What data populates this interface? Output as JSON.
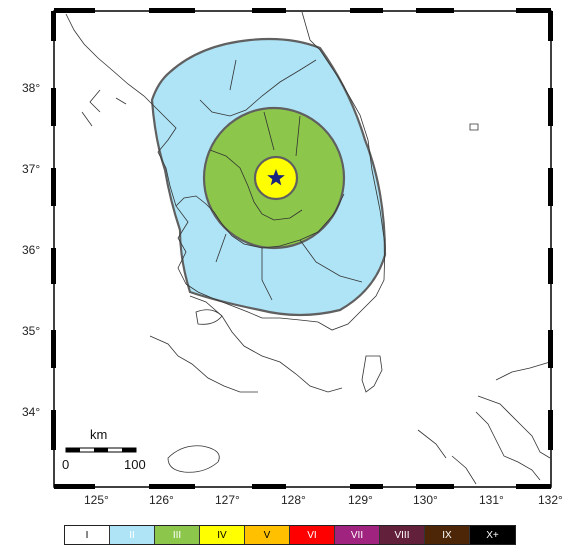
{
  "map": {
    "y_axis_labels": [
      "38°",
      "37°",
      "36°",
      "35°",
      "34°"
    ],
    "x_axis_labels": [
      "125°",
      "126°",
      "127°",
      "128°",
      "129°",
      "130°",
      "131°",
      "132°"
    ],
    "scale_bar": {
      "unit": "km",
      "start": "0",
      "end": "100"
    },
    "epicenter_marker": "star-icon",
    "intensity_zones": [
      {
        "level": "II",
        "color": "#aee4f6"
      },
      {
        "level": "III",
        "color": "#8cc64a"
      },
      {
        "level": "IV",
        "color": "#ffff00"
      }
    ]
  },
  "legend": {
    "items": [
      {
        "label": "I",
        "color": "#ffffff",
        "text_color": "#000000"
      },
      {
        "label": "II",
        "color": "#aee4f6",
        "text_color": "#ffffff"
      },
      {
        "label": "III",
        "color": "#8cc64a",
        "text_color": "#ffffff"
      },
      {
        "label": "IV",
        "color": "#ffff00",
        "text_color": "#000000"
      },
      {
        "label": "V",
        "color": "#ffc000",
        "text_color": "#000000"
      },
      {
        "label": "VI",
        "color": "#ff0000",
        "text_color": "#ffffff"
      },
      {
        "label": "VII",
        "color": "#a0237f",
        "text_color": "#ffffff"
      },
      {
        "label": "VIII",
        "color": "#63203b",
        "text_color": "#ffffff"
      },
      {
        "label": "IX",
        "color": "#4c2607",
        "text_color": "#ffffff"
      },
      {
        "label": "X+",
        "color": "#000000",
        "text_color": "#ffffff"
      }
    ]
  }
}
